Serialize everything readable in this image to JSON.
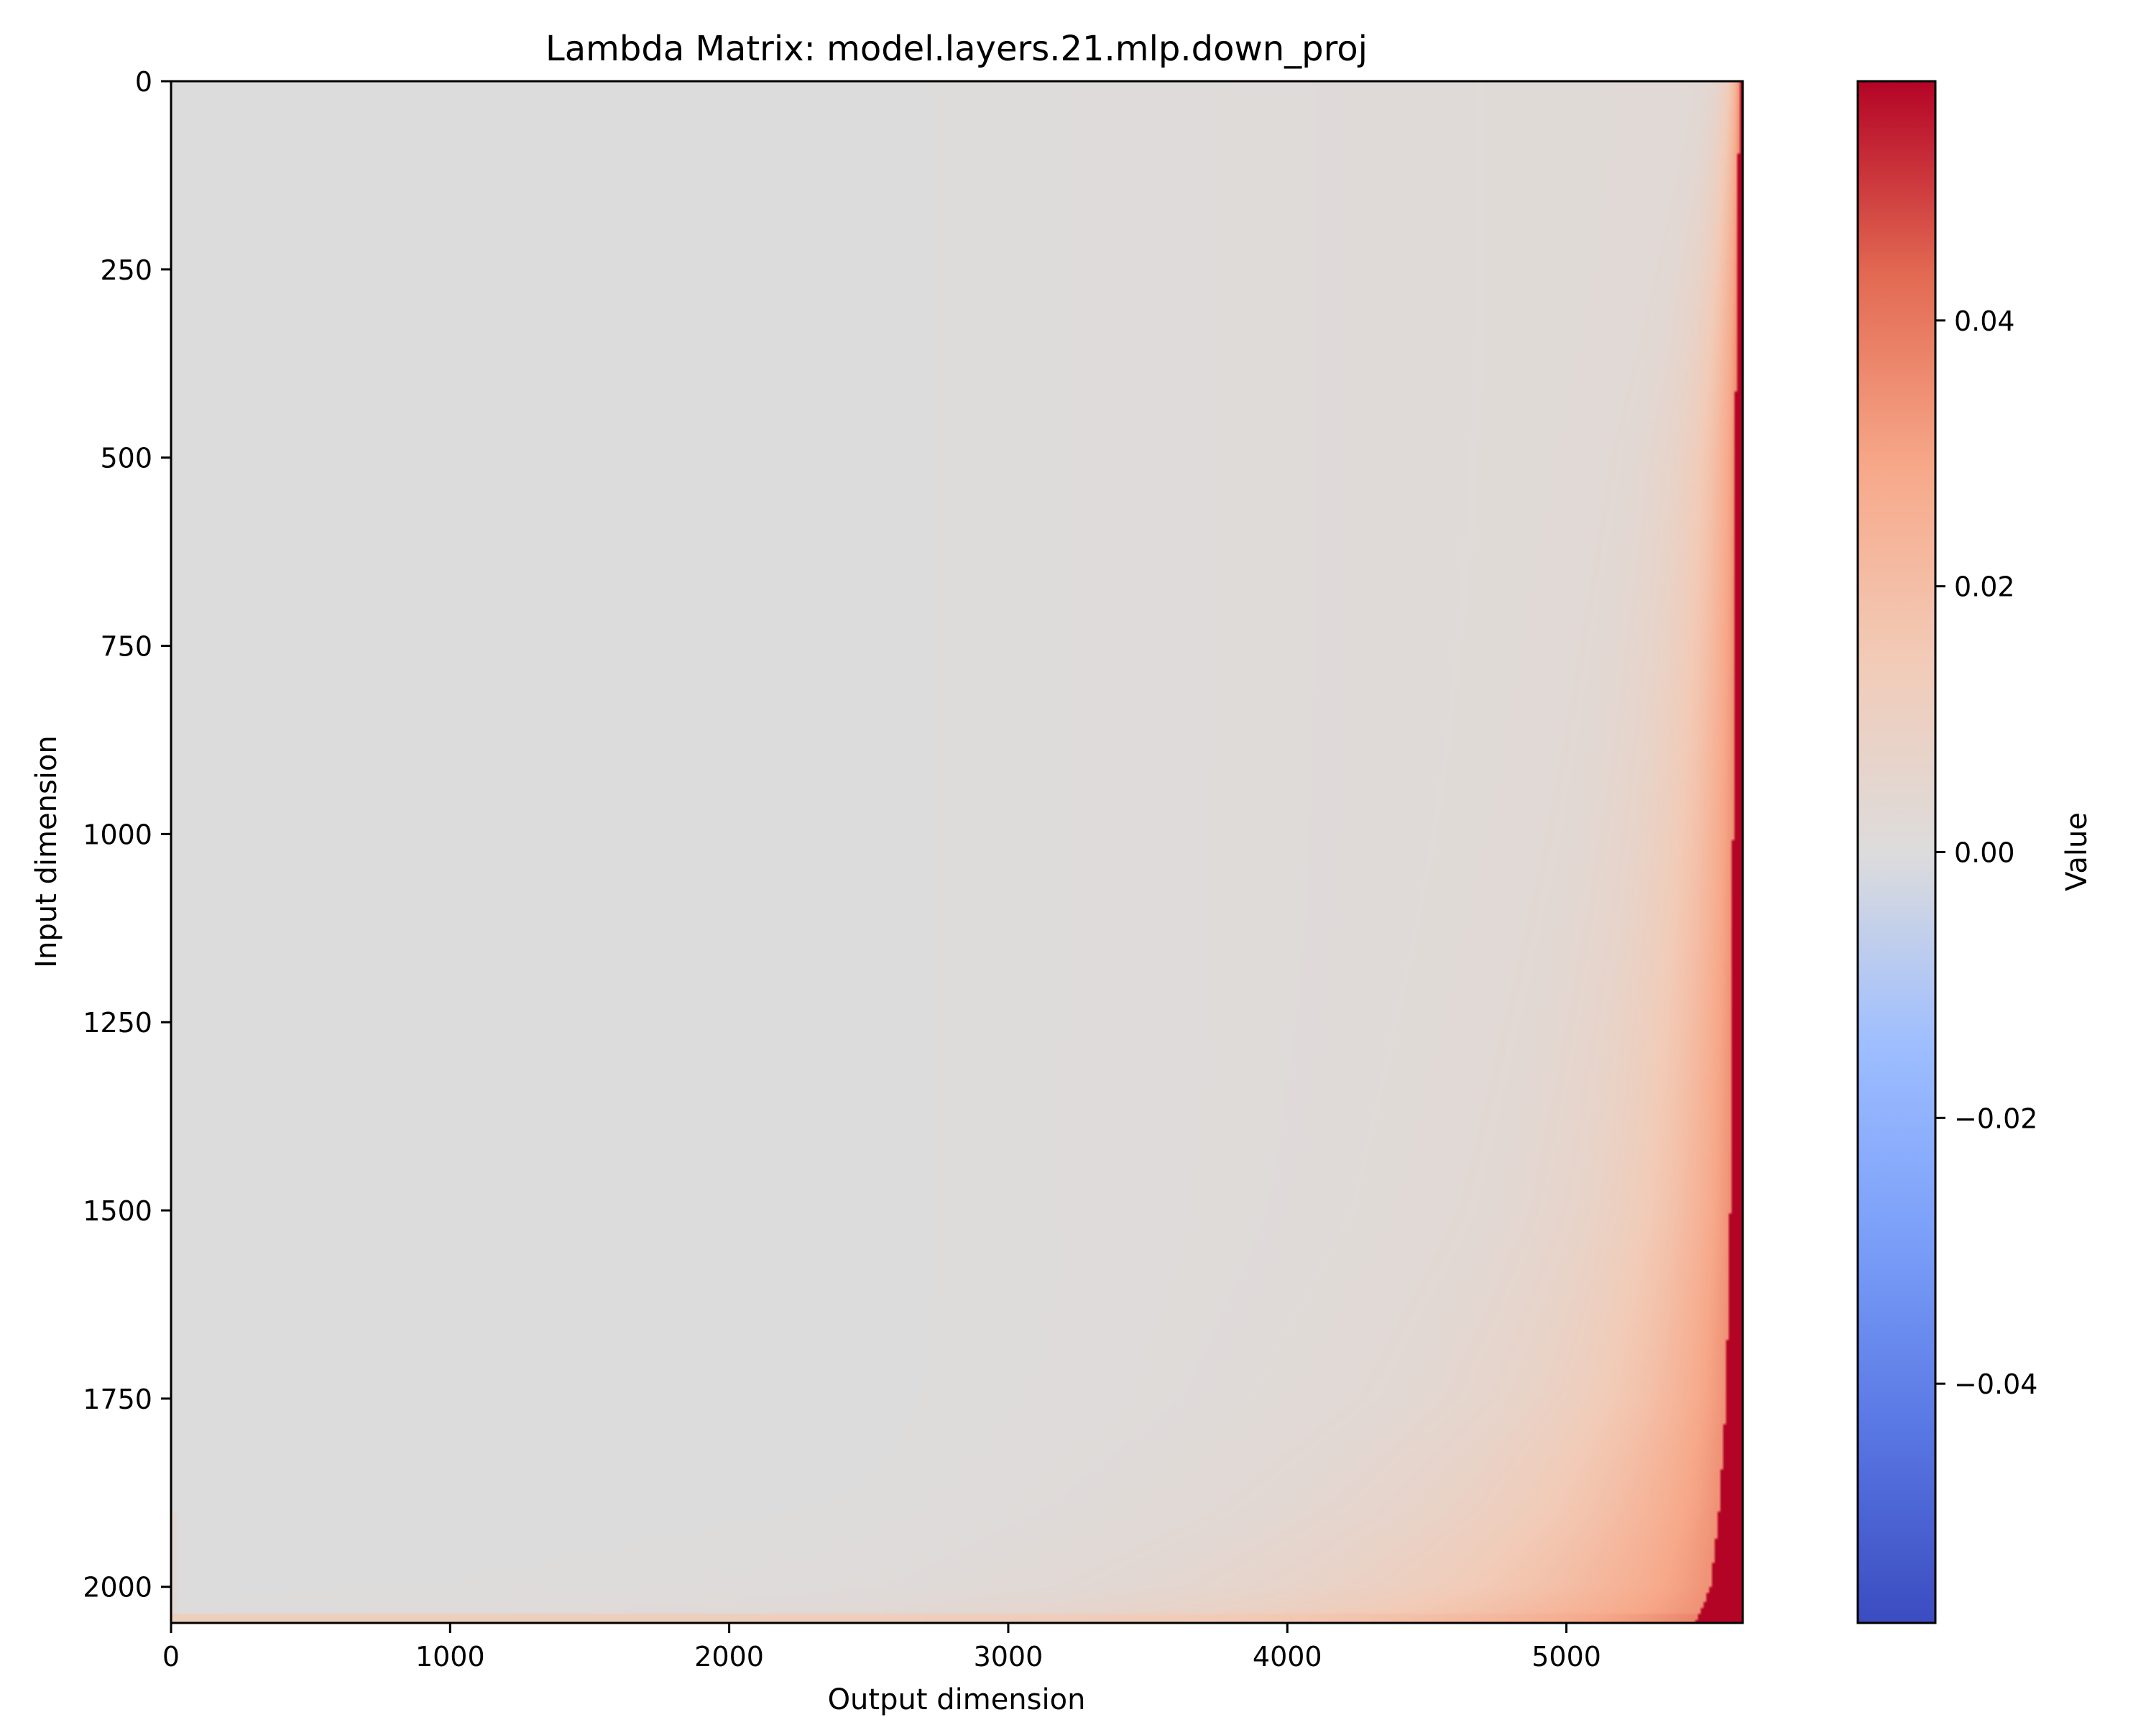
{
  "chart_data": {
    "type": "heatmap",
    "title": "Lambda Matrix: model.layers.21.mlp.down_proj",
    "xlabel": "Output dimension",
    "ylabel": "Input dimension",
    "xlim": [
      0,
      5632
    ],
    "ylim": [
      2048,
      0
    ],
    "x_ticks": [
      0,
      1000,
      2000,
      3000,
      4000,
      5000
    ],
    "x_tick_labels": [
      "0",
      "1000",
      "2000",
      "3000",
      "4000",
      "5000"
    ],
    "y_ticks": [
      0,
      250,
      500,
      750,
      1000,
      1250,
      1500,
      1750,
      2000
    ],
    "y_tick_labels": [
      "0",
      "250",
      "500",
      "750",
      "1000",
      "1250",
      "1500",
      "1750",
      "2000"
    ],
    "grid": false,
    "colormap": "coolwarm",
    "colorbar": {
      "label": "Value",
      "vmin": -0.058,
      "vmax": 0.058,
      "ticks": [
        0.04,
        0.02,
        0.0,
        -0.02,
        -0.04
      ],
      "tick_labels": [
        "0.04",
        "0.02",
        "0.00",
        "−0.02",
        "−0.04"
      ]
    },
    "pattern": {
      "description_values": "near zero everywhere; values increase toward the last output columns, with a saturated positive band at the right edge that widens toward the bottom rows; a thin positive strip along the last input rows",
      "right_band_width_cols": [
        {
          "row": 0,
          "cols": 12
        },
        {
          "row": 500,
          "cols": 28
        },
        {
          "row": 1000,
          "cols": 35
        },
        {
          "row": 1500,
          "cols": 45
        },
        {
          "row": 1750,
          "cols": 60
        },
        {
          "row": 1900,
          "cols": 85
        },
        {
          "row": 2000,
          "cols": 115
        },
        {
          "row": 2048,
          "cols": 170
        }
      ],
      "max_value": 0.058,
      "background_value": 0.0
    }
  }
}
